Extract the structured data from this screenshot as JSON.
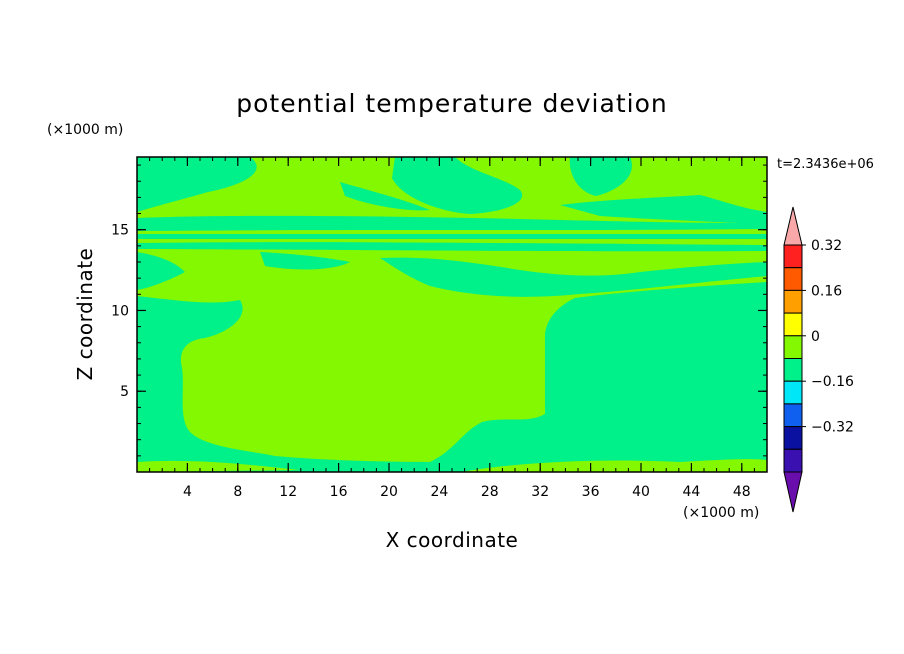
{
  "chart_data": {
    "type": "heatmap",
    "title": "potential temperature deviation",
    "xlabel": "X coordinate",
    "ylabel": "Z coordinate",
    "x_unit": "(×1000 m)",
    "y_unit": "(×1000 m)",
    "time_label": "t=2.3436e+06",
    "xlim": [
      0,
      50
    ],
    "ylim": [
      0,
      19.5
    ],
    "x_ticks": [
      4,
      8,
      12,
      16,
      20,
      24,
      28,
      32,
      36,
      40,
      44,
      48
    ],
    "y_ticks": [
      5,
      10,
      15
    ],
    "grid": false,
    "colorbar": {
      "placement": "right",
      "levels": [
        -0.4,
        -0.32,
        -0.24,
        -0.16,
        -0.08,
        0,
        0.08,
        0.16,
        0.24,
        0.32,
        0.4
      ],
      "colors": [
        "#6a0dad",
        "#3a10b0",
        "#0a10a0",
        "#1060f0",
        "#00e8f8",
        "#00f08a",
        "#84f800",
        "#ffff00",
        "#ffa000",
        "#ff5a00",
        "#ff2020",
        "#f8a8a8"
      ],
      "labels": [
        "0.32",
        "0.16",
        "0",
        "−0.16",
        "−0.32"
      ],
      "label_values": [
        0.32,
        0.16,
        0,
        -0.16,
        -0.32
      ]
    },
    "series": [
      {
        "level": "0 to 0.08",
        "color": "#84f800",
        "region": "main field"
      },
      {
        "level": "-0.08 to 0",
        "color": "#00f08a",
        "region": "lower-left and right interior, banded layers near z≈11–19"
      }
    ]
  }
}
